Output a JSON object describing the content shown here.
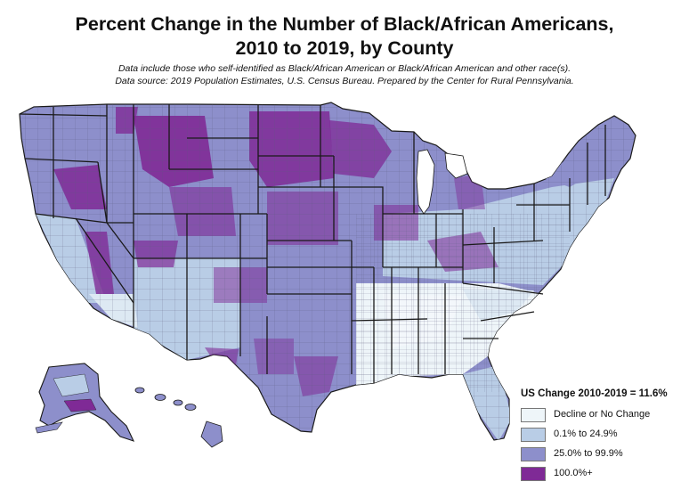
{
  "title_line1": "Percent Change in the Number of Black/African Americans,",
  "title_line2": "2010 to 2019, by County",
  "subtitle_line1": "Data include those who self-identified as Black/African American or Black/African American and other race(s).",
  "subtitle_line2": "Data source: 2019 Population Estimates, U.S. Census Bureau. Prepared by the Center for Rural Pennsylvania.",
  "legend": {
    "title": "US Change 2010-2019 = 11.6%",
    "items": [
      {
        "label": "Decline or No Change",
        "color": "#eef5f9"
      },
      {
        "label": "0.1% to 24.9%",
        "color": "#b9cde6"
      },
      {
        "label": "25.0% to 99.9%",
        "color": "#8d8fcb"
      },
      {
        "label": "100.0%+",
        "color": "#7f2a96"
      }
    ]
  },
  "map_colors": {
    "border": "#1a1a1a",
    "county_line": "#555577"
  }
}
